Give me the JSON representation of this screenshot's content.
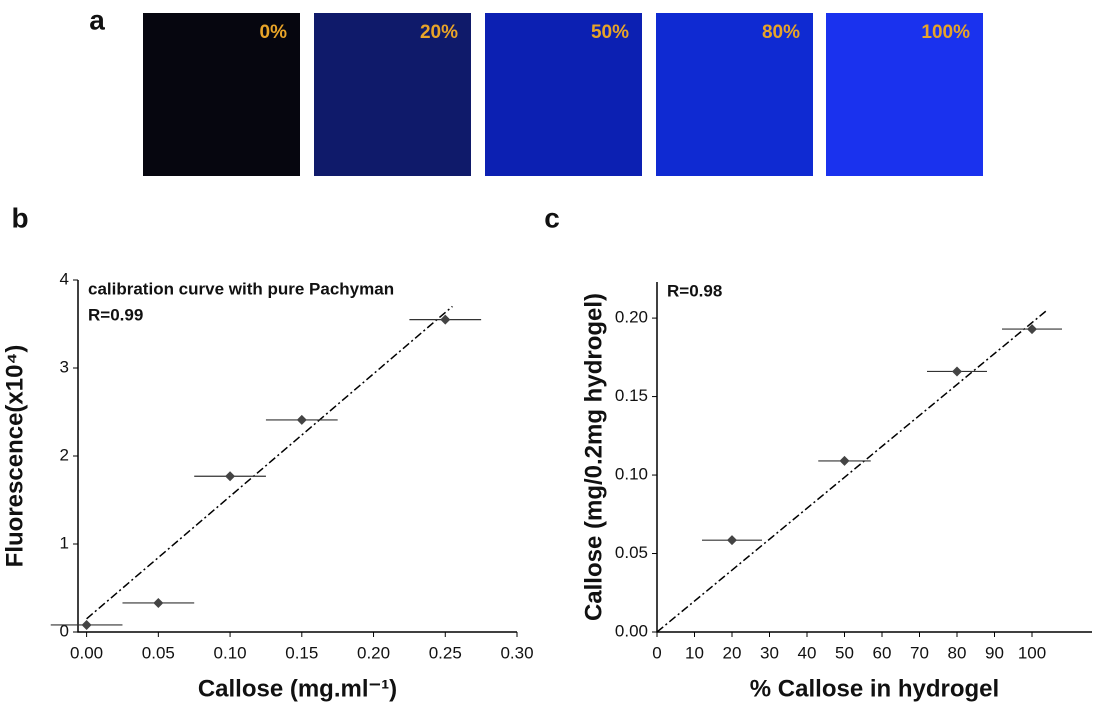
{
  "panel_labels": [
    "a",
    "b",
    "c"
  ],
  "swatches": {
    "labels": [
      "0%",
      "20%",
      "50%",
      "80%",
      "100%"
    ],
    "colors": [
      "#06060f",
      "#0f1a6a",
      "#0c20b2",
      "#0f2ad2",
      "#1a32ee"
    ],
    "label_color": "#e8a428"
  },
  "chart_data": [
    {
      "type": "scatter",
      "annotations": [
        "calibration curve with pure Pachyman",
        "R=0.99"
      ],
      "xlabel": "Callose (mg.ml⁻¹)",
      "ylabel": "Fluorescence(x10⁴)",
      "x": [
        0,
        0.05,
        0.1,
        0.15,
        0.25
      ],
      "values": [
        0.08,
        0.33,
        1.77,
        2.41,
        3.55
      ],
      "xerr": [
        0.025,
        0.025,
        0.025,
        0.025,
        0.025
      ],
      "color": "#444444",
      "fit": {
        "x": [
          0,
          0.255
        ],
        "y": [
          0.15,
          3.7
        ]
      },
      "xlim": [
        -0.006,
        0.3
      ],
      "ylim": [
        0,
        4
      ],
      "xticks": [
        {
          "value": 0,
          "label": "0.00"
        },
        0.05,
        {
          "value": 0.1,
          "label": "0.10"
        },
        0.15,
        {
          "value": 0.2,
          "label": "0.20"
        },
        0.25,
        {
          "value": 0.3,
          "label": "0.30"
        }
      ],
      "yticks": [
        0,
        1,
        2,
        3,
        4
      ]
    },
    {
      "type": "scatter",
      "annotations": [
        "R=0.98"
      ],
      "xlabel": "% Callose in hydrogel",
      "ylabel": "Callose (mg/0.2mg hydrogel)",
      "x": [
        20,
        50,
        80,
        100
      ],
      "values": [
        0.0585,
        0.109,
        0.166,
        0.193
      ],
      "xerr": [
        8,
        7,
        8,
        8
      ],
      "color": "#444444",
      "fit": {
        "x": [
          0,
          104
        ],
        "y": [
          0,
          0.205
        ]
      },
      "xlim": [
        0,
        116
      ],
      "ylim": [
        0,
        0.223
      ],
      "xticks": [
        0,
        10,
        20,
        30,
        40,
        50,
        60,
        70,
        80,
        90,
        100
      ],
      "yticks": [
        {
          "value": 0,
          "label": "0.00"
        },
        0.05,
        {
          "value": 0.1,
          "label": "0.10"
        },
        0.15,
        {
          "value": 0.2,
          "label": "0.20"
        }
      ]
    }
  ]
}
